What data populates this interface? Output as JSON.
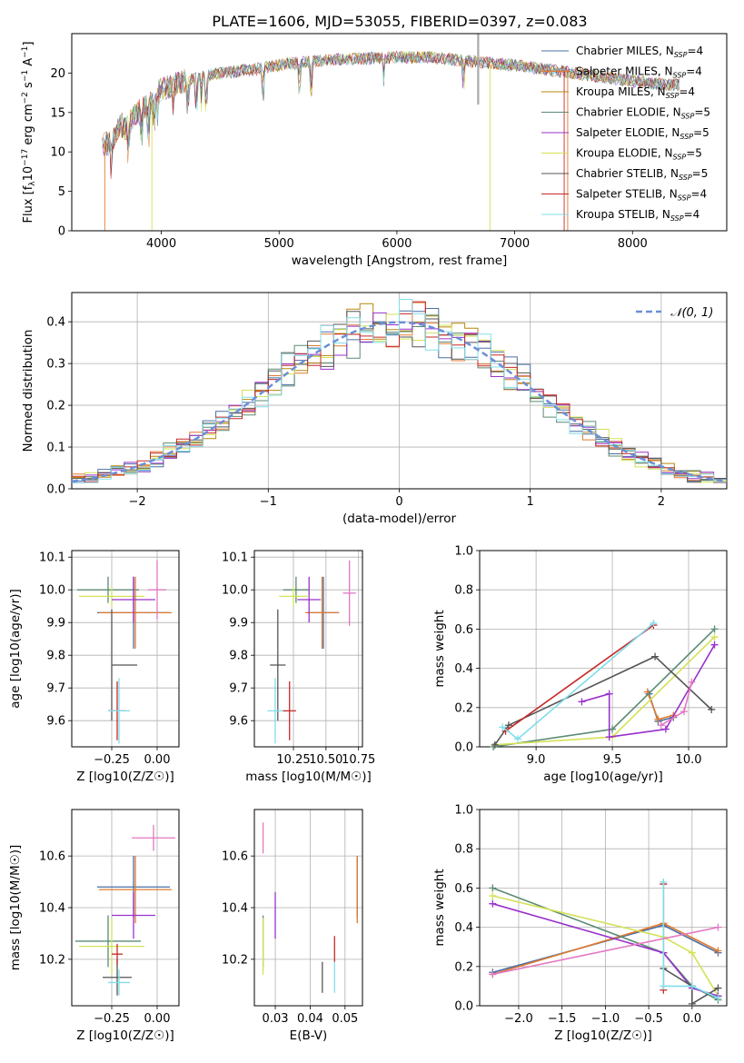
{
  "figure": {
    "title": "PLATE=1606, MJD=53055, FIBERID=0397, z=0.083"
  },
  "chart_data": [
    {
      "id": "spectrum",
      "type": "line",
      "title": "PLATE=1606, MJD=53055, FIBERID=0397, z=0.083",
      "xlabel": "wavelength [Angstrom, rest frame]",
      "ylabel_parts": [
        "Flux [f",
        "λ",
        "10",
        "−17",
        " erg cm",
        "−2",
        " s",
        "−1",
        " A",
        "−1",
        "]"
      ],
      "xlim": [
        3240,
        8800
      ],
      "ylim": [
        0,
        25
      ],
      "xticks": [
        "4000",
        "5000",
        "6000",
        "7000",
        "8000"
      ],
      "yticks": [
        "0",
        "5",
        "10",
        "15",
        "20"
      ],
      "grid": false,
      "legend": "top-right",
      "continuum": [
        [
          3500,
          11
        ],
        [
          3550,
          11
        ],
        [
          3600,
          12
        ],
        [
          3650,
          13.5
        ],
        [
          3700,
          13
        ],
        [
          3800,
          15
        ],
        [
          3900,
          16
        ],
        [
          3950,
          17
        ],
        [
          4000,
          18
        ],
        [
          4200,
          19
        ],
        [
          4500,
          20
        ],
        [
          4800,
          20.5
        ],
        [
          5000,
          21
        ],
        [
          5300,
          21.5
        ],
        [
          5600,
          21.8
        ],
        [
          6000,
          22
        ],
        [
          6300,
          22
        ],
        [
          6600,
          21.5
        ],
        [
          7000,
          21
        ],
        [
          7500,
          20
        ],
        [
          8000,
          19
        ],
        [
          8300,
          18.5
        ],
        [
          8400,
          18.5
        ]
      ],
      "series": [
        {
          "name_main": "Chabrier MILES, N",
          "name_sub": "SSP",
          "name_end": "=4",
          "color": "#4a6fa5"
        },
        {
          "name_main": "Salpeter MILES, N",
          "name_sub": "SSP",
          "name_end": "=4",
          "color": "#e07a30"
        },
        {
          "name_main": "Kroupa MILES, N",
          "name_sub": "SSP",
          "name_end": "=4",
          "color": "#b8860b"
        },
        {
          "name_main": "Chabrier ELODIE, N",
          "name_sub": "SSP",
          "name_end": "=5",
          "color": "#5b8a72"
        },
        {
          "name_main": "Salpeter ELODIE, N",
          "name_sub": "SSP",
          "name_end": "=5",
          "color": "#9932cc"
        },
        {
          "name_main": "Kroupa ELODIE, N",
          "name_sub": "SSP",
          "name_end": "=5",
          "color": "#d4e157"
        },
        {
          "name_main": "Chabrier STELIB, N",
          "name_sub": "SSP",
          "name_end": "=5",
          "color": "#555555"
        },
        {
          "name_main": "Salpeter STELIB, N",
          "name_sub": "SSP",
          "name_end": "=4",
          "color": "#c62828"
        },
        {
          "name_main": "Kroupa STELIB, N",
          "name_sub": "SSP",
          "name_end": "=4",
          "color": "#80deea"
        }
      ]
    },
    {
      "id": "residuals",
      "type": "line",
      "xlabel": "(data-model)/error",
      "ylabel": "Normed distribution",
      "xlim": [
        -2.5,
        2.5
      ],
      "ylim": [
        0,
        0.47
      ],
      "xticks": [
        "−2",
        "−1",
        "0",
        "1",
        "2"
      ],
      "xtick_values": [
        -2,
        -1,
        0,
        1,
        2
      ],
      "yticks": [
        "0.0",
        "0.1",
        "0.2",
        "0.3",
        "0.4"
      ],
      "ytick_values": [
        0,
        0.1,
        0.2,
        0.3,
        0.4
      ],
      "grid": true,
      "legend": "top-right",
      "legend_label": "𝒩(0, 1)",
      "normal_color": "#6a8fd8",
      "hist_colors": [
        "#4a6fa5",
        "#e07a30",
        "#b8860b",
        "#5b8a72",
        "#9932cc",
        "#d4e157",
        "#555555",
        "#c62828",
        "#80deea"
      ]
    },
    {
      "id": "age_vs_Z",
      "type": "scatter",
      "xlabel": "Z [log10(Z/Z☉)]",
      "ylabel": "age  [log10(age/yr)]",
      "xlim": [
        -0.47,
        0.12
      ],
      "ylim": [
        9.52,
        10.12
      ],
      "xticks": [
        "−0.25",
        "0.00"
      ],
      "xtick_values": [
        -0.25,
        0
      ],
      "yticks": [
        "9.6",
        "9.7",
        "9.8",
        "9.9",
        "10.0",
        "10.1"
      ],
      "ytick_values": [
        9.6,
        9.7,
        9.8,
        9.9,
        10.0,
        10.1
      ],
      "grid": true,
      "points": [
        {
          "x": -0.27,
          "y": 10.0,
          "xerr": 0.17,
          "yerr": 0.04,
          "color": "#5b8a72"
        },
        {
          "x": -0.25,
          "y": 9.98,
          "xerr": 0.18,
          "yerr": 0.03,
          "color": "#d4e157"
        },
        {
          "x": -0.13,
          "y": 9.93,
          "xerr": 0.2,
          "yerr": 0.11,
          "color": "#4a6fa5"
        },
        {
          "x": -0.12,
          "y": 9.93,
          "xerr": 0.2,
          "yerr": 0.11,
          "color": "#e07a30"
        },
        {
          "x": -0.13,
          "y": 9.97,
          "xerr": 0.12,
          "yerr": 0.07,
          "color": "#9932cc"
        },
        {
          "x": 0.0,
          "y": 10.0,
          "xerr": 0.05,
          "yerr": 0.09,
          "color": "#e377c2"
        },
        {
          "x": -0.25,
          "y": 9.77,
          "xerr": 0.0,
          "yerr": 0.17,
          "color": "#555555"
        },
        {
          "x": -0.18,
          "y": 9.77,
          "xerr": 0.07,
          "yerr": 0.0,
          "color": "#555555"
        },
        {
          "x": -0.22,
          "y": 9.63,
          "xerr": 0.05,
          "yerr": 0.09,
          "color": "#c62828"
        },
        {
          "x": -0.21,
          "y": 9.63,
          "xerr": 0.06,
          "yerr": 0.1,
          "color": "#80deea"
        }
      ]
    },
    {
      "id": "age_vs_mass",
      "type": "scatter",
      "xlabel": "mass [log10(M/M☉)]",
      "xlim": [
        9.95,
        10.78
      ],
      "ylim": [
        9.52,
        10.12
      ],
      "xticks": [
        "10.25",
        "10.50",
        "10.75"
      ],
      "xtick_values": [
        10.25,
        10.5,
        10.75
      ],
      "yticks": [
        "9.6",
        "9.7",
        "9.8",
        "9.9",
        "10.0",
        "10.1"
      ],
      "ytick_values": [
        9.6,
        9.7,
        9.8,
        9.9,
        10.0,
        10.1
      ],
      "grid": true,
      "points": [
        {
          "x": 10.27,
          "y": 10.0,
          "xerr": 0.1,
          "yerr": 0.04,
          "color": "#5b8a72"
        },
        {
          "x": 10.25,
          "y": 9.98,
          "xerr": 0.11,
          "yerr": 0.03,
          "color": "#d4e157"
        },
        {
          "x": 10.48,
          "y": 9.93,
          "xerr": 0.12,
          "yerr": 0.11,
          "color": "#4a6fa5"
        },
        {
          "x": 10.47,
          "y": 9.93,
          "xerr": 0.13,
          "yerr": 0.11,
          "color": "#e07a30"
        },
        {
          "x": 10.37,
          "y": 9.97,
          "xerr": 0.09,
          "yerr": 0.07,
          "color": "#9932cc"
        },
        {
          "x": 10.68,
          "y": 9.99,
          "xerr": 0.05,
          "yerr": 0.1,
          "color": "#e377c2"
        },
        {
          "x": 10.13,
          "y": 9.77,
          "xerr": 0.06,
          "yerr": 0.17,
          "color": "#555555"
        },
        {
          "x": 10.22,
          "y": 9.63,
          "xerr": 0.05,
          "yerr": 0.09,
          "color": "#c62828"
        },
        {
          "x": 10.11,
          "y": 9.63,
          "xerr": 0.06,
          "yerr": 0.1,
          "color": "#80deea"
        }
      ]
    },
    {
      "id": "weight_vs_age",
      "type": "line",
      "xlabel": "age  [log10(age/yr)]",
      "ylabel": "mass weight",
      "xlim": [
        8.63,
        10.25
      ],
      "ylim": [
        0,
        1.0
      ],
      "xticks": [
        "9.0",
        "9.5",
        "10.0"
      ],
      "xtick_values": [
        9.0,
        9.5,
        10.0
      ],
      "yticks": [
        "0.0",
        "0.2",
        "0.4",
        "0.6",
        "0.8",
        "1.0"
      ],
      "ytick_values": [
        0,
        0.2,
        0.4,
        0.6,
        0.8,
        1.0
      ],
      "grid": true,
      "series": [
        {
          "color": "#4a6fa5",
          "x": [
            9.74,
            9.8,
            9.9
          ],
          "y": [
            0.27,
            0.13,
            0.15
          ]
        },
        {
          "color": "#e07a30",
          "x": [
            9.73,
            9.8,
            9.9
          ],
          "y": [
            0.28,
            0.14,
            0.16
          ]
        },
        {
          "color": "#5b8a72",
          "x": [
            8.72,
            9.5,
            10.17
          ],
          "y": [
            0.0,
            0.09,
            0.6
          ]
        },
        {
          "color": "#d4e157",
          "x": [
            8.73,
            9.5,
            10.17
          ],
          "y": [
            0.01,
            0.05,
            0.56
          ]
        },
        {
          "color": "#9932cc",
          "x": [
            9.3,
            9.48,
            9.48,
            9.85,
            10.17
          ],
          "y": [
            0.23,
            0.27,
            0.05,
            0.09,
            0.52
          ]
        },
        {
          "color": "#555555",
          "x": [
            8.73,
            8.82,
            9.78,
            10.15
          ],
          "y": [
            0.01,
            0.11,
            0.46,
            0.19
          ]
        },
        {
          "color": "#c62828",
          "x": [
            8.8,
            9.77
          ],
          "y": [
            0.08,
            0.62
          ]
        },
        {
          "color": "#80deea",
          "x": [
            8.78,
            8.88,
            9.77
          ],
          "y": [
            0.1,
            0.04,
            0.63
          ]
        },
        {
          "color": "#e377c2",
          "x": [
            9.82,
            9.97,
            10.02
          ],
          "y": [
            0.11,
            0.18,
            0.33
          ]
        }
      ]
    },
    {
      "id": "mass_vs_Z",
      "type": "scatter",
      "xlabel": "Z [log10(Z/Z☉)]",
      "ylabel": "mass [log10(M/M☉)]",
      "xlim": [
        -0.47,
        0.12
      ],
      "ylim": [
        10.02,
        10.78
      ],
      "xticks": [
        "−0.25",
        "0.00"
      ],
      "xtick_values": [
        -0.25,
        0
      ],
      "yticks": [
        "10.2",
        "10.4",
        "10.6"
      ],
      "ytick_values": [
        10.2,
        10.4,
        10.6
      ],
      "grid": true,
      "points": [
        {
          "x": -0.27,
          "y": 10.27,
          "xerr": 0.18,
          "yerr": 0.1,
          "color": "#5b8a72"
        },
        {
          "x": -0.25,
          "y": 10.25,
          "xerr": 0.18,
          "yerr": 0.11,
          "color": "#d4e157"
        },
        {
          "x": -0.13,
          "y": 10.48,
          "xerr": 0.2,
          "yerr": 0.12,
          "color": "#4a6fa5"
        },
        {
          "x": -0.12,
          "y": 10.47,
          "xerr": 0.2,
          "yerr": 0.13,
          "color": "#e07a30"
        },
        {
          "x": -0.13,
          "y": 10.37,
          "xerr": 0.12,
          "yerr": 0.09,
          "color": "#9932cc"
        },
        {
          "x": -0.02,
          "y": 10.67,
          "xerr": 0.12,
          "yerr": 0.05,
          "color": "#e377c2"
        },
        {
          "x": -0.22,
          "y": 10.13,
          "xerr": 0.08,
          "yerr": 0.07,
          "color": "#555555"
        },
        {
          "x": -0.22,
          "y": 10.22,
          "xerr": 0.03,
          "yerr": 0.04,
          "color": "#c62828"
        },
        {
          "x": -0.21,
          "y": 10.11,
          "xerr": 0.06,
          "yerr": 0.05,
          "color": "#80deea"
        }
      ]
    },
    {
      "id": "mass_vs_EBV",
      "type": "scatter",
      "xlabel": "E(B-V)",
      "xlim": [
        0.024,
        0.055
      ],
      "ylim": [
        10.02,
        10.78
      ],
      "xticks": [
        "0.03",
        "0.04",
        "0.05"
      ],
      "xtick_values": [
        0.03,
        0.04,
        0.05
      ],
      "yticks": [
        "10.2",
        "10.4",
        "10.6"
      ],
      "ytick_values": [
        10.2,
        10.4,
        10.6
      ],
      "grid": true,
      "points": [
        {
          "x": 0.0265,
          "y": 10.27,
          "xerr": 0,
          "yerr": 0.1,
          "color": "#5b8a72"
        },
        {
          "x": 0.0265,
          "y": 10.25,
          "xerr": 0,
          "yerr": 0.11,
          "color": "#d4e157"
        },
        {
          "x": 0.0535,
          "y": 10.48,
          "xerr": 0,
          "yerr": 0.12,
          "color": "#4a6fa5"
        },
        {
          "x": 0.0535,
          "y": 10.47,
          "xerr": 0,
          "yerr": 0.13,
          "color": "#e07a30"
        },
        {
          "x": 0.03,
          "y": 10.37,
          "xerr": 0,
          "yerr": 0.09,
          "color": "#9932cc"
        },
        {
          "x": 0.0265,
          "y": 10.67,
          "xerr": 0,
          "yerr": 0.06,
          "color": "#e377c2"
        },
        {
          "x": 0.0435,
          "y": 10.13,
          "xerr": 0,
          "yerr": 0.06,
          "color": "#555555"
        },
        {
          "x": 0.047,
          "y": 10.24,
          "xerr": 0,
          "yerr": 0.05,
          "color": "#c62828"
        },
        {
          "x": 0.047,
          "y": 10.13,
          "xerr": 0,
          "yerr": 0.06,
          "color": "#80deea"
        }
      ]
    },
    {
      "id": "weight_vs_Z",
      "type": "line",
      "xlabel": "Z [log10(Z/Z☉)]",
      "ylabel": "mass weight",
      "xlim": [
        -2.45,
        0.4
      ],
      "ylim": [
        0,
        1.0
      ],
      "xticks": [
        "−2.0",
        "−1.5",
        "−1.0",
        "−0.5",
        "0.0"
      ],
      "xtick_values": [
        -2,
        -1.5,
        -1,
        -0.5,
        0
      ],
      "yticks": [
        "0.0",
        "0.2",
        "0.4",
        "0.6",
        "0.8",
        "1.0"
      ],
      "ytick_values": [
        0,
        0.2,
        0.4,
        0.6,
        0.8,
        1.0
      ],
      "grid": true,
      "series": [
        {
          "color": "#4a6fa5",
          "x": [
            -2.3,
            -0.33,
            0.3
          ],
          "y": [
            0.17,
            0.41,
            0.27
          ]
        },
        {
          "color": "#e07a30",
          "x": [
            -2.3,
            -0.33,
            0.3
          ],
          "y": [
            0.16,
            0.42,
            0.28
          ]
        },
        {
          "color": "#5b8a72",
          "x": [
            -2.3,
            -0.33,
            0.0,
            0.3
          ],
          "y": [
            0.6,
            0.27,
            0.1,
            0.03
          ]
        },
        {
          "color": "#d4e157",
          "x": [
            -2.3,
            -0.33,
            0.0,
            0.3
          ],
          "y": [
            0.56,
            0.35,
            0.27,
            0.05
          ]
        },
        {
          "color": "#9932cc",
          "x": [
            -2.3,
            -0.33,
            0.0,
            0.3
          ],
          "y": [
            0.52,
            0.27,
            0.09,
            0.05
          ]
        },
        {
          "color": "#555555",
          "x": [
            -0.33,
            0.0,
            0.0,
            0.3
          ],
          "y": [
            0.19,
            0.1,
            0.01,
            0.09
          ]
        },
        {
          "color": "#c62828",
          "x": [
            -0.33,
            -0.33
          ],
          "y": [
            0.62,
            0.08
          ]
        },
        {
          "color": "#80deea",
          "x": [
            -0.33,
            -0.33,
            0.0,
            0.3
          ],
          "y": [
            0.63,
            0.1,
            0.1,
            0.04
          ]
        },
        {
          "color": "#e377c2",
          "x": [
            -2.3,
            0.3
          ],
          "y": [
            0.16,
            0.4
          ]
        }
      ]
    }
  ]
}
